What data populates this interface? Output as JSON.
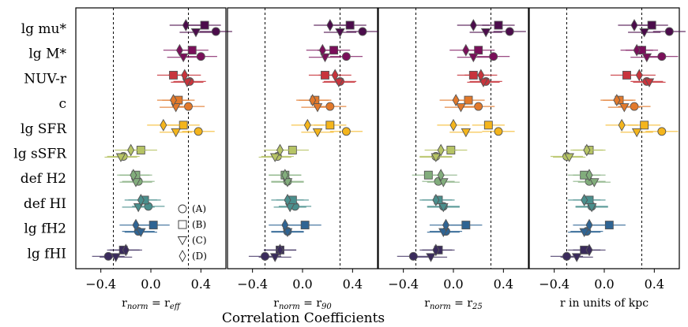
{
  "chart_data": {
    "type": "scatter",
    "title": "Correlation Coefficients",
    "xlim": [
      -0.6,
      0.6
    ],
    "xticks": [
      -0.4,
      0.0,
      0.4
    ],
    "xtick_labels": [
      "−0.4",
      "0.0",
      "0.4"
    ],
    "reference_lines": [
      -0.3,
      0.3
    ],
    "categories": [
      "lg mu*",
      "lg M*",
      "NUV-r",
      "c",
      "lg SFR",
      "lg sSFR",
      "def H2",
      "def HI",
      "lg fH2",
      "lg fHI"
    ],
    "category_colors": [
      "#4b0c4b",
      "#7a0f5a",
      "#c8343c",
      "#e2792b",
      "#f4b51c",
      "#b6c465",
      "#82ad7c",
      "#4a8f8d",
      "#2f6493",
      "#3a2b5c"
    ],
    "markers": [
      "circle",
      "square",
      "triangle-down",
      "diamond"
    ],
    "legend": [
      {
        "marker": "circle",
        "label": "(A)"
      },
      {
        "marker": "square",
        "label": "(B)"
      },
      {
        "marker": "triangle-down",
        "label": "(C)"
      },
      {
        "marker": "diamond",
        "label": "(D)"
      }
    ],
    "panels": [
      {
        "xlabel_main": "r",
        "xlabel_sub": "norm",
        "xlabel_rest": " = r",
        "xlabel_rest_sub": "eff",
        "series": [
          {
            "name": "(A)",
            "values": [
              0.52,
              0.4,
              0.31,
              0.3,
              0.38,
              -0.22,
              -0.1,
              -0.02,
              -0.1,
              -0.34
            ]
          },
          {
            "name": "(B)",
            "values": [
              0.43,
              0.33,
              0.18,
              0.22,
              0.26,
              -0.08,
              -0.12,
              -0.05,
              0.02,
              -0.22
            ]
          },
          {
            "name": "(C)",
            "values": [
              0.36,
              0.26,
              0.29,
              0.2,
              0.2,
              -0.24,
              -0.12,
              -0.1,
              -0.08,
              -0.28
            ]
          },
          {
            "name": "(D)",
            "values": [
              0.28,
              0.23,
              0.27,
              0.18,
              0.1,
              -0.16,
              -0.14,
              -0.08,
              -0.12,
              -0.2
            ]
          }
        ]
      },
      {
        "xlabel_main": "r",
        "xlabel_sub": "norm",
        "xlabel_rest": " = r",
        "xlabel_rest_sub": "90",
        "series": [
          {
            "name": "(A)",
            "values": [
              0.48,
              0.35,
              0.3,
              0.22,
              0.35,
              -0.2,
              -0.12,
              -0.06,
              -0.12,
              -0.3
            ]
          },
          {
            "name": "(B)",
            "values": [
              0.38,
              0.25,
              0.18,
              0.1,
              0.22,
              -0.08,
              -0.14,
              -0.08,
              0.02,
              -0.18
            ]
          },
          {
            "name": "(C)",
            "values": [
              0.3,
              0.18,
              0.29,
              0.12,
              0.12,
              -0.22,
              -0.12,
              -0.1,
              -0.12,
              -0.22
            ]
          },
          {
            "name": "(D)",
            "values": [
              0.22,
              0.16,
              0.26,
              0.08,
              0.04,
              -0.18,
              -0.14,
              -0.12,
              -0.14,
              -0.18
            ]
          }
        ]
      },
      {
        "xlabel_main": "r",
        "xlabel_sub": "norm",
        "xlabel_rest": " = r",
        "xlabel_rest_sub": "25",
        "series": [
          {
            "name": "(A)",
            "values": [
              0.45,
              0.32,
              0.26,
              0.2,
              0.36,
              -0.14,
              -0.12,
              -0.08,
              -0.06,
              -0.32
            ]
          },
          {
            "name": "(B)",
            "values": [
              0.36,
              0.2,
              0.16,
              0.12,
              0.28,
              -0.02,
              -0.2,
              -0.12,
              0.1,
              -0.12
            ]
          },
          {
            "name": "(C)",
            "values": [
              0.26,
              0.16,
              0.24,
              0.06,
              0.1,
              -0.14,
              -0.08,
              -0.08,
              -0.08,
              -0.18
            ]
          },
          {
            "name": "(D)",
            "values": [
              0.16,
              0.1,
              0.22,
              0.02,
              0.0,
              -0.1,
              -0.1,
              -0.14,
              -0.06,
              -0.14
            ]
          }
        ]
      },
      {
        "xlabel_main": "r in units of kpc",
        "xlabel_sub": "",
        "xlabel_rest": "",
        "xlabel_rest_sub": "",
        "series": [
          {
            "name": "(A)",
            "values": [
              0.52,
              0.46,
              0.34,
              0.24,
              0.46,
              -0.3,
              -0.12,
              -0.1,
              -0.14,
              -0.3
            ]
          },
          {
            "name": "(B)",
            "values": [
              0.38,
              0.3,
              0.18,
              0.12,
              0.32,
              -0.12,
              -0.16,
              -0.12,
              0.04,
              -0.16
            ]
          },
          {
            "name": "(C)",
            "values": [
              0.32,
              0.34,
              0.36,
              0.16,
              0.26,
              -0.28,
              -0.08,
              -0.1,
              -0.16,
              -0.22
            ]
          },
          {
            "name": "(D)",
            "values": [
              0.24,
              0.26,
              0.28,
              0.1,
              0.14,
              -0.14,
              -0.12,
              -0.16,
              -0.12,
              -0.12
            ]
          }
        ]
      }
    ]
  }
}
